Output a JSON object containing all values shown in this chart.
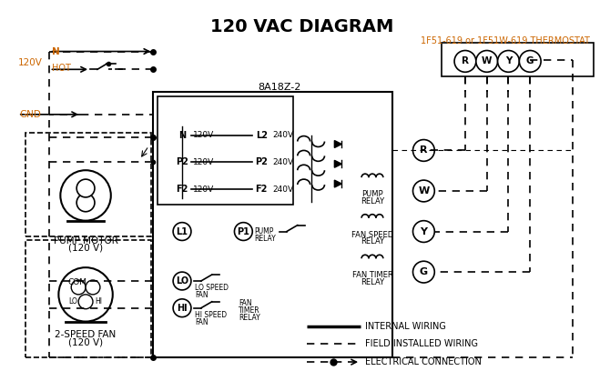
{
  "title": "120 VAC DIAGRAM",
  "thermostat_label": "1F51-619 or 1F51W-619 THERMOSTAT",
  "control_box_label": "8A18Z-2",
  "bg_color": "#ffffff",
  "text_color": "#000000",
  "orange_color": "#cc6600",
  "legend": {
    "internal_wiring": "INTERNAL WIRING",
    "field_wiring": "FIELD INSTALLED WIRING",
    "electrical_connection": "ELECTRICAL CONNECTION"
  }
}
